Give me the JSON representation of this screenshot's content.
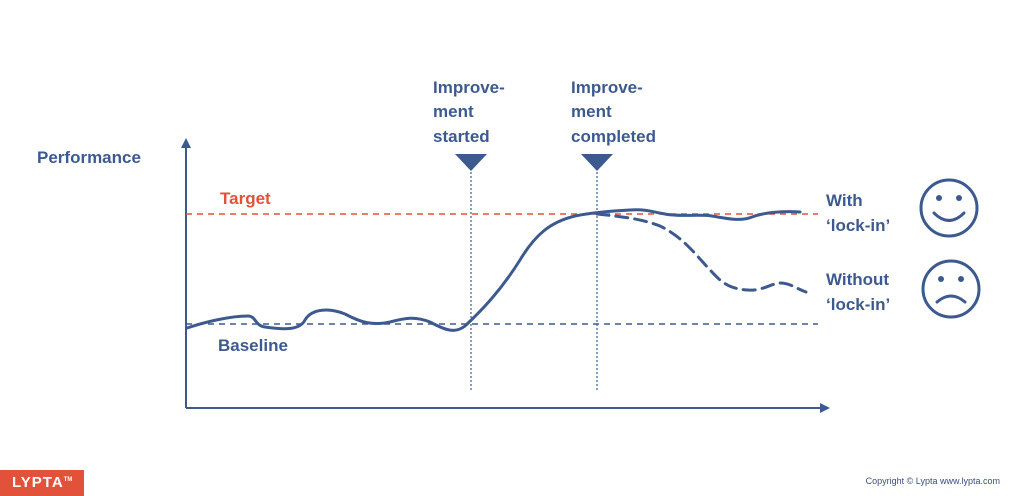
{
  "labels": {
    "y_axis": "Performance",
    "target": "Target",
    "baseline": "Baseline",
    "started_line1": "Improve-",
    "started_line2": "ment",
    "started_line3": "started",
    "completed_line1": "Improve-",
    "completed_line2": "ment",
    "completed_line3": "completed",
    "with_line1": "With",
    "with_line2": "‘lock-in’",
    "without_line1": "Without",
    "without_line2": "‘lock-in’"
  },
  "icons": {
    "with": "smiley-face-icon",
    "without": "frowning-face-icon"
  },
  "footer": {
    "brand": "LYPTA",
    "trademark": "TM",
    "copyright": "Copyright © Lypta  www.lypta.com"
  },
  "colors": {
    "navy": "#3d5a8f",
    "target_red": "#e2523a",
    "brand_bg": "#e2523a"
  }
}
